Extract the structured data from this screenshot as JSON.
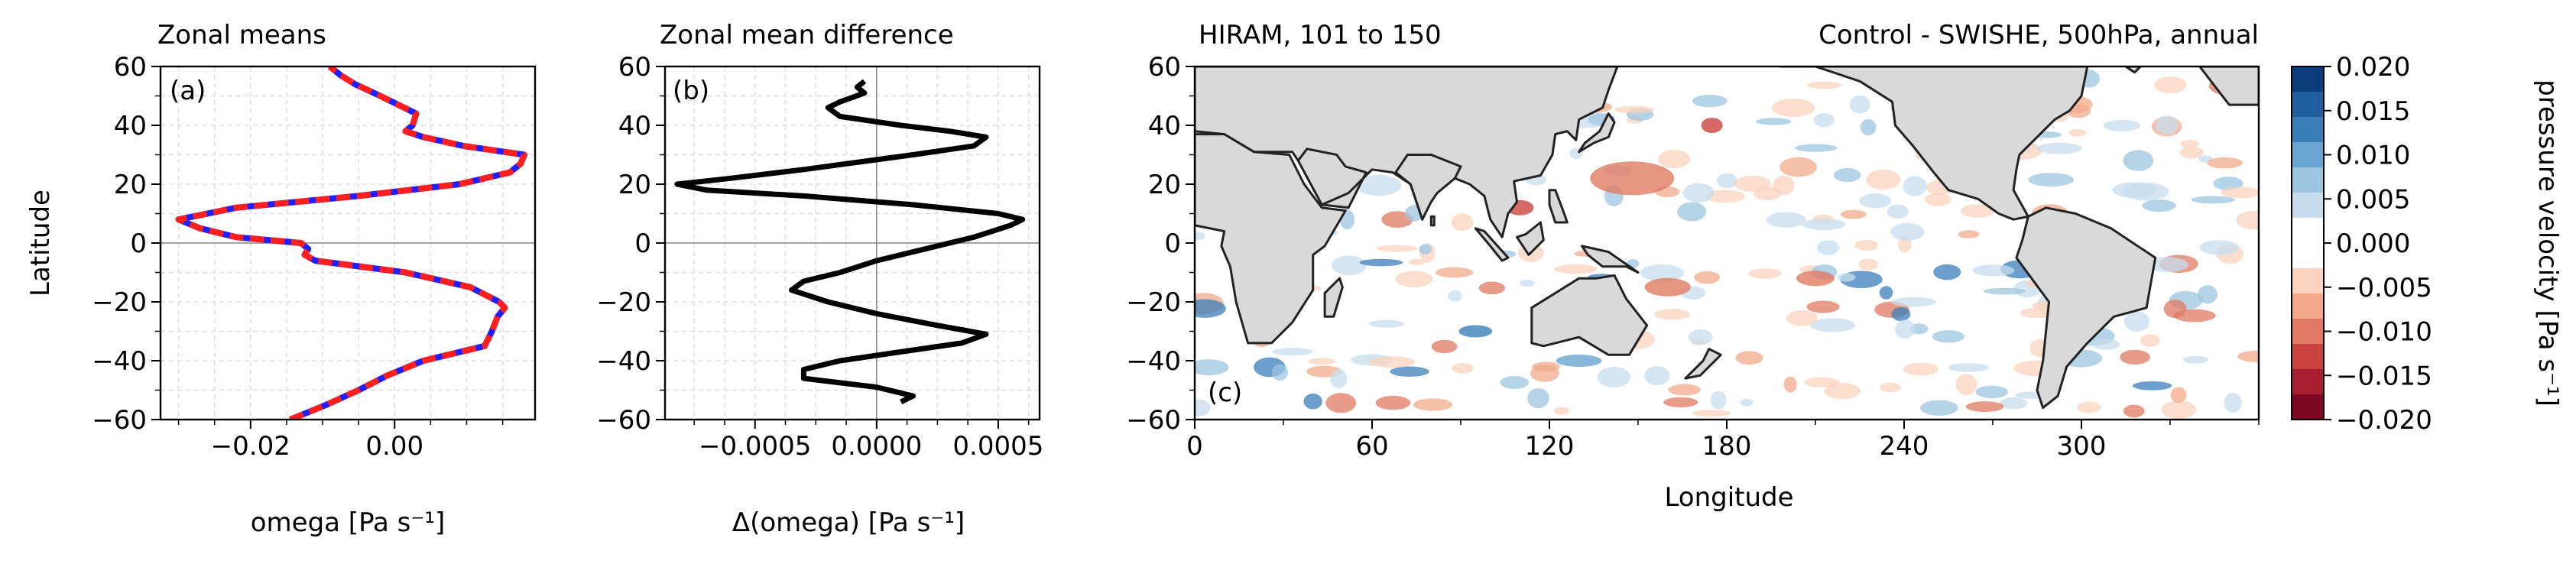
{
  "chart_data": [
    {
      "id": "a",
      "type": "line",
      "title": "Zonal means",
      "panel_label": "(a)",
      "xlabel": "omega [Pa s⁻¹]",
      "ylabel": "Latitude",
      "xlim": [
        -0.0325,
        0.0195
      ],
      "ylim": [
        -60,
        60
      ],
      "x_ticks": [
        -0.02,
        0.0
      ],
      "x_tick_labels": [
        "−0.02",
        "0.00"
      ],
      "y_ticks": [
        -60,
        -40,
        -20,
        0,
        20,
        40,
        60
      ],
      "y_tick_labels": [
        "−60",
        "−40",
        "−20",
        "0",
        "20",
        "40",
        "60"
      ],
      "grid": true,
      "series": [
        {
          "style": "solid",
          "color": "#1f1fff",
          "lat": [
            -60,
            -55,
            -50,
            -45,
            -40,
            -35,
            -30,
            -25,
            -22,
            -20,
            -15,
            -10,
            -6,
            -4,
            -2,
            0,
            2,
            5,
            8,
            12,
            16,
            20,
            24,
            27,
            30,
            33,
            36,
            38,
            40,
            44,
            47,
            50,
            54,
            57,
            60
          ],
          "values": [
            -0.0145,
            -0.0095,
            -0.005,
            -0.001,
            0.004,
            0.0125,
            0.0135,
            0.0143,
            0.0153,
            0.0145,
            0.0105,
            0.0015,
            -0.011,
            -0.0125,
            -0.012,
            -0.013,
            -0.022,
            -0.027,
            -0.03,
            -0.022,
            -0.005,
            0.009,
            0.016,
            0.0175,
            0.018,
            0.0095,
            0.004,
            0.0015,
            0.0025,
            0.003,
            0.0005,
            -0.002,
            -0.0055,
            -0.0075,
            -0.009
          ]
        },
        {
          "style": "dashed",
          "color": "#ff1f1f",
          "lat": [
            -60,
            -55,
            -50,
            -45,
            -40,
            -35,
            -30,
            -25,
            -22,
            -20,
            -15,
            -10,
            -6,
            -4,
            -2,
            0,
            2,
            5,
            8,
            12,
            16,
            20,
            24,
            27,
            30,
            33,
            36,
            38,
            40,
            44,
            47,
            50,
            54,
            57,
            60
          ],
          "values": [
            -0.0145,
            -0.0095,
            -0.005,
            -0.001,
            0.004,
            0.0125,
            0.0135,
            0.0143,
            0.0153,
            0.0145,
            0.0105,
            0.0015,
            -0.011,
            -0.0125,
            -0.012,
            -0.013,
            -0.022,
            -0.027,
            -0.03,
            -0.022,
            -0.005,
            0.009,
            0.016,
            0.0175,
            0.018,
            0.0095,
            0.004,
            0.0015,
            0.0025,
            0.003,
            0.0005,
            -0.002,
            -0.0055,
            -0.0075,
            -0.009
          ]
        }
      ]
    },
    {
      "id": "b",
      "type": "line",
      "title": "Zonal mean difference",
      "panel_label": "(b)",
      "xlabel": "Δ(omega) [Pa s⁻¹]",
      "xlim": [
        -0.00087,
        0.00067
      ],
      "ylim": [
        -60,
        60
      ],
      "x_ticks": [
        -0.0005,
        0.0,
        0.0005
      ],
      "x_tick_labels": [
        "−0.0005",
        "0.0000",
        "0.0005"
      ],
      "y_ticks": [
        -60,
        -40,
        -20,
        0,
        20,
        40,
        60
      ],
      "y_tick_labels": [
        "−60",
        "−40",
        "−20",
        "0",
        "20",
        "40",
        "60"
      ],
      "grid": true,
      "series": [
        {
          "style": "solid",
          "color": "#000000",
          "lat": [
            -54,
            -52,
            -49,
            -46,
            -43,
            -40,
            -37,
            -34,
            -31,
            -28,
            -24,
            -20,
            -16,
            -13,
            -10,
            -6,
            -2,
            2,
            6,
            8,
            10,
            13,
            16,
            18,
            20,
            22,
            25,
            30,
            33,
            36,
            38,
            40,
            43,
            46,
            48,
            51,
            53,
            55
          ],
          "values": [
            0.0001,
            0.00015,
            0.0,
            -0.0003,
            -0.0003,
            -0.00015,
            0.0001,
            0.00035,
            0.00045,
            0.00025,
            0.0,
            -0.0002,
            -0.00035,
            -0.0003,
            -0.00015,
            0.0,
            0.0002,
            0.0004,
            0.00055,
            0.0006,
            0.0005,
            0.00015,
            -0.0003,
            -0.0007,
            -0.00082,
            -0.0006,
            -0.0003,
            0.00015,
            0.0004,
            0.00045,
            0.0003,
            0.0001,
            -0.00015,
            -0.0002,
            -0.00015,
            -5e-05,
            -8e-05,
            -5e-05
          ]
        }
      ]
    },
    {
      "id": "c",
      "type": "heatmap",
      "title_left": "HIRAM, 101 to 150",
      "title_right": "Control - SWISHE, 500hPa, annual",
      "panel_label": "(c)",
      "xlabel": "Longitude",
      "xlim": [
        0,
        360
      ],
      "ylim": [
        -60,
        60
      ],
      "x_ticks": [
        0,
        60,
        120,
        180,
        240,
        300
      ],
      "x_tick_labels": [
        "0",
        "60",
        "120",
        "180",
        "240",
        "300"
      ],
      "y_ticks": [
        -60,
        -40,
        -20,
        0,
        20,
        40,
        60
      ],
      "y_tick_labels": [
        "−60",
        "−40",
        "−20",
        "0",
        "20",
        "40",
        "60"
      ],
      "colorbar": {
        "label": "pressure velocity [Pa s⁻¹]",
        "range": [
          -0.02,
          0.02
        ],
        "ticks": [
          0.02,
          0.015,
          0.01,
          0.005,
          0.0,
          -0.005,
          -0.01,
          -0.015,
          -0.02
        ],
        "tick_labels": [
          "0.020",
          "0.015",
          "0.010",
          "0.005",
          "0.000",
          "−0.005",
          "−0.010",
          "−0.015",
          "−0.020"
        ],
        "colors": [
          "#0b3d7a",
          "#1f5fa0",
          "#3b7fb9",
          "#6aa5cf",
          "#9cc6e0",
          "#c7ddee",
          "#ffffff",
          "#ffffff",
          "#f9d3bd",
          "#f2aa8b",
          "#e07a62",
          "#c9433f",
          "#a8202f",
          "#7d0823"
        ]
      },
      "positive_color": "#2166ac",
      "negative_color": "#d6604d",
      "land_color": "#d9d9d9"
    }
  ]
}
